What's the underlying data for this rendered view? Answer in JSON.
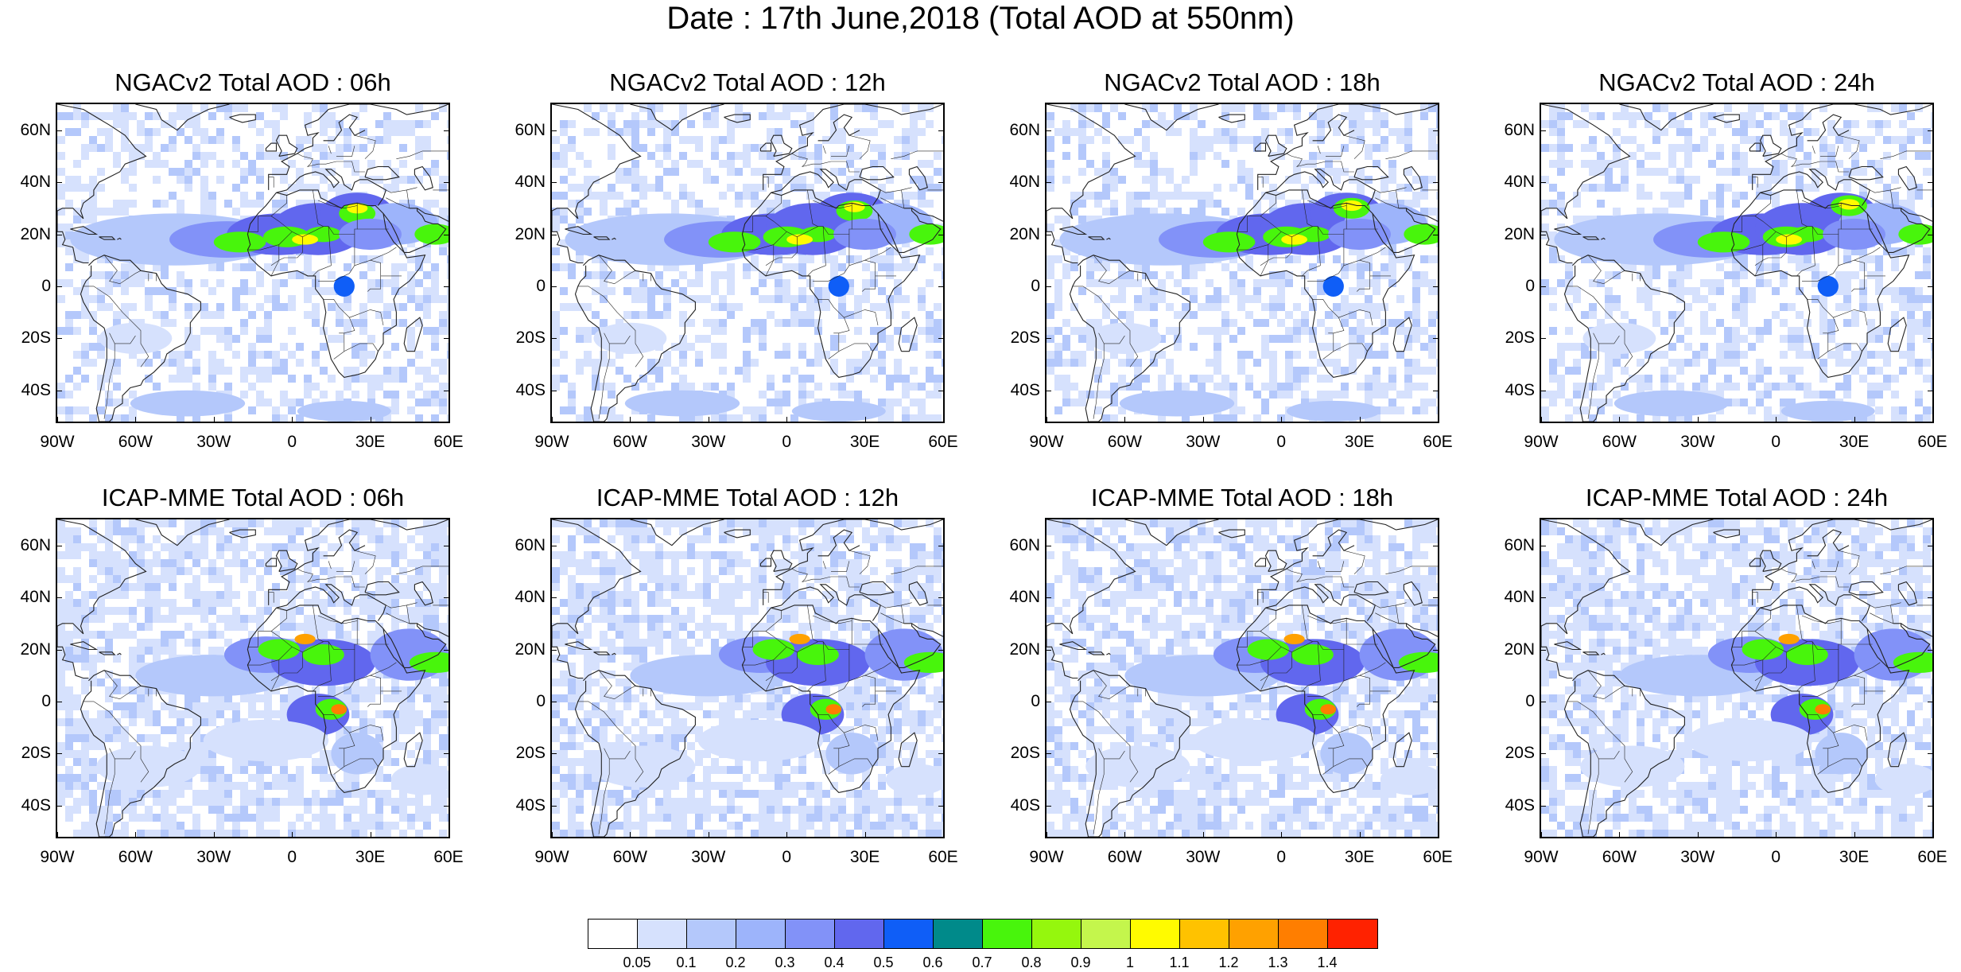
{
  "title": "Date : 17th June,2018 (Total AOD at 550nm)",
  "panels": [
    {
      "title": "NGACv2 Total AOD : 06h",
      "model": "ngac",
      "hour": 6
    },
    {
      "title": "NGACv2 Total AOD : 12h",
      "model": "ngac",
      "hour": 12
    },
    {
      "title": "NGACv2 Total AOD : 18h",
      "model": "ngac",
      "hour": 18
    },
    {
      "title": "NGACv2 Total AOD : 24h",
      "model": "ngac",
      "hour": 24
    },
    {
      "title": "ICAP-MME Total AOD : 06h",
      "model": "icap",
      "hour": 6
    },
    {
      "title": "ICAP-MME Total AOD : 12h",
      "model": "icap",
      "hour": 12
    },
    {
      "title": "ICAP-MME Total AOD : 18h",
      "model": "icap",
      "hour": 18
    },
    {
      "title": "ICAP-MME Total AOD : 24h",
      "model": "icap",
      "hour": 24
    }
  ],
  "axes": {
    "lat_labels": [
      "60N",
      "40N",
      "20N",
      "0",
      "20S",
      "40S"
    ],
    "lon_labels": [
      "90W",
      "60W",
      "30W",
      "0",
      "30E",
      "60E"
    ],
    "lat_values": [
      60,
      40,
      20,
      0,
      -20,
      -40
    ],
    "lon_values": [
      -90,
      -60,
      -30,
      0,
      30,
      60
    ],
    "lat_range": [
      -52,
      70
    ],
    "lon_range": [
      -90,
      60
    ]
  },
  "colorbar": {
    "colors": [
      "#ffffff",
      "#d6e1fd",
      "#b4c8fb",
      "#9db4fb",
      "#8292f8",
      "#6167ee",
      "#0f5ef7",
      "#008a8a",
      "#48f50c",
      "#95f70d",
      "#c4f64c",
      "#fffb00",
      "#ffc200",
      "#ffa100",
      "#ff7e00",
      "#ff2200"
    ],
    "labels": [
      "0.05",
      "0.1",
      "0.2",
      "0.3",
      "0.4",
      "0.5",
      "0.6",
      "0.7",
      "0.8",
      "0.9",
      "1",
      "1.1",
      "1.2",
      "1.3",
      "1.4"
    ]
  }
}
